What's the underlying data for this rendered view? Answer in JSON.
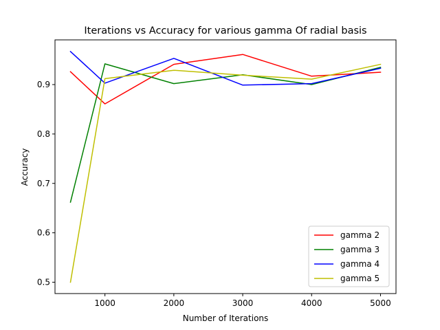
{
  "chart_data": {
    "type": "line",
    "title": "Iterations vs Accuracy for various gamma Of radial basis",
    "xlabel": "Number of Iterations",
    "ylabel": "Accuracy",
    "x": [
      500,
      1000,
      2000,
      3000,
      4000,
      5000
    ],
    "xlim": [
      275,
      5225
    ],
    "ylim": [
      0.477,
      0.9905
    ],
    "xticks": [
      1000,
      2000,
      3000,
      4000,
      5000
    ],
    "yticks": [
      0.5,
      0.6,
      0.7,
      0.8,
      0.9
    ],
    "xtick_labels": [
      "1000",
      "2000",
      "3000",
      "4000",
      "5000"
    ],
    "ytick_labels": [
      "0.5",
      "0.6",
      "0.7",
      "0.8",
      "0.9"
    ],
    "legend_position": "lower-right",
    "grid": false,
    "series": [
      {
        "name": "gamma 2",
        "color": "#ff0000",
        "values": [
          0.926,
          0.861,
          0.941,
          0.961,
          0.917,
          0.925
        ]
      },
      {
        "name": "gamma 3",
        "color": "#008000",
        "values": [
          0.662,
          0.942,
          0.902,
          0.92,
          0.9,
          0.935
        ]
      },
      {
        "name": "gamma 4",
        "color": "#0000ff",
        "values": [
          0.967,
          0.903,
          0.953,
          0.899,
          0.902,
          0.933
        ]
      },
      {
        "name": "gamma 5",
        "color": "#bfbf00",
        "values": [
          0.5,
          0.912,
          0.929,
          0.919,
          0.911,
          0.941
        ]
      }
    ]
  }
}
